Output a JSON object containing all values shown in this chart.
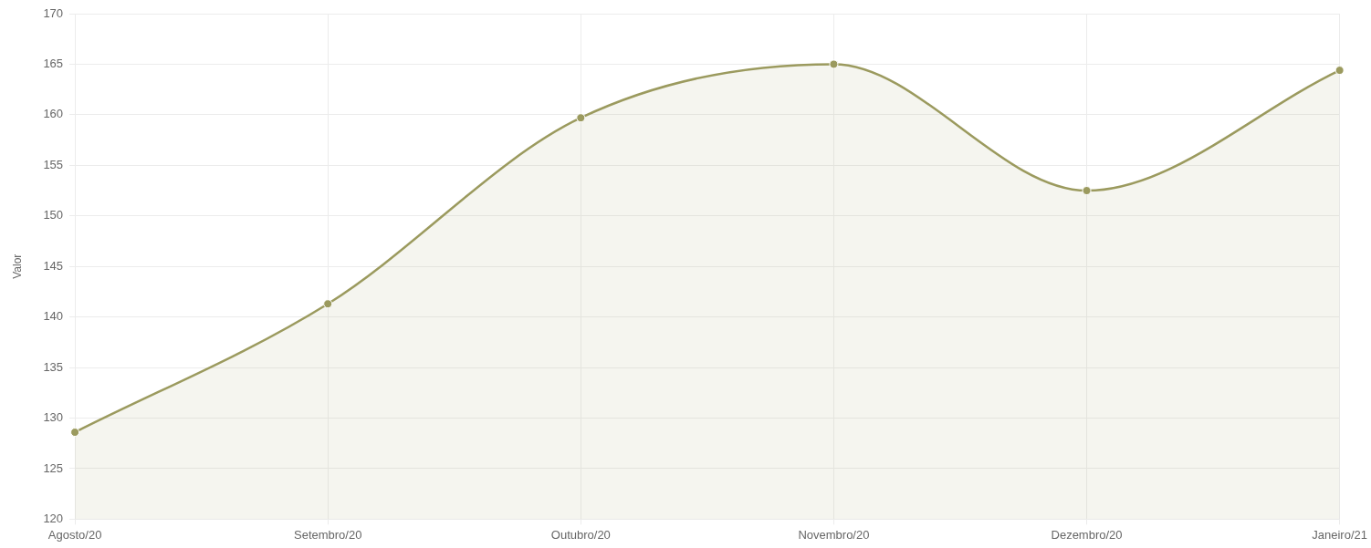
{
  "chart_data": {
    "type": "area",
    "categories": [
      "Agosto/20",
      "Setembro/20",
      "Outubro/20",
      "Novembro/20",
      "Dezembro/20",
      "Janeiro/21"
    ],
    "values": [
      128.6,
      141.3,
      159.7,
      165.0,
      152.5,
      164.4
    ],
    "color": "#9b9a5e",
    "ylabel": "Valor",
    "ylim": [
      120,
      170
    ],
    "yticks": [
      120,
      125,
      130,
      135,
      140,
      145,
      150,
      155,
      160,
      165,
      170
    ],
    "grid": true,
    "marker": "circle"
  }
}
